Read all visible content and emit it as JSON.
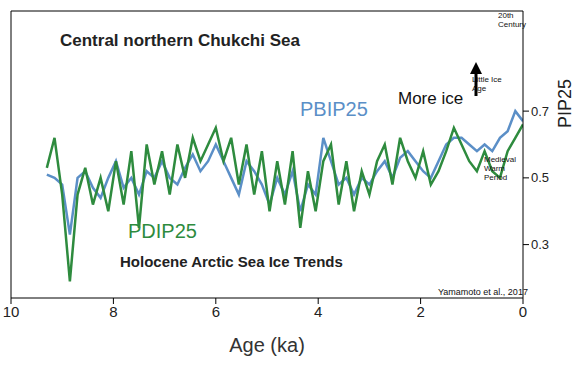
{
  "chart_data": {
    "type": "line",
    "title": "Central northern Chukchi Sea",
    "subtitle": "Holocene Arctic Sea Ice Trends",
    "x_label": "Age (ka)",
    "y_label": "PIP25",
    "x": [
      9.3,
      9.15,
      9.0,
      8.85,
      8.7,
      8.55,
      8.4,
      8.25,
      8.1,
      7.95,
      7.8,
      7.65,
      7.5,
      7.35,
      7.2,
      7.05,
      6.9,
      6.75,
      6.6,
      6.45,
      6.3,
      6.15,
      6.0,
      5.85,
      5.7,
      5.55,
      5.4,
      5.25,
      5.1,
      4.95,
      4.8,
      4.65,
      4.5,
      4.35,
      4.2,
      4.05,
      3.9,
      3.75,
      3.6,
      3.45,
      3.3,
      3.15,
      3.0,
      2.85,
      2.7,
      2.55,
      2.4,
      2.25,
      2.1,
      1.95,
      1.8,
      1.65,
      1.5,
      1.35,
      1.2,
      1.05,
      0.9,
      0.75,
      0.6,
      0.45,
      0.3,
      0.15,
      0.0
    ],
    "series": [
      {
        "name": "PBIP25",
        "color": "#5b8fc7",
        "values": [
          0.51,
          0.5,
          0.48,
          0.33,
          0.5,
          0.52,
          0.47,
          0.44,
          0.5,
          0.55,
          0.47,
          0.5,
          0.45,
          0.52,
          0.5,
          0.55,
          0.5,
          0.48,
          0.53,
          0.57,
          0.52,
          0.55,
          0.6,
          0.55,
          0.5,
          0.45,
          0.55,
          0.52,
          0.48,
          0.42,
          0.5,
          0.45,
          0.52,
          0.4,
          0.48,
          0.45,
          0.62,
          0.55,
          0.48,
          0.5,
          0.45,
          0.5,
          0.48,
          0.52,
          0.55,
          0.5,
          0.56,
          0.58,
          0.55,
          0.52,
          0.5,
          0.55,
          0.6,
          0.62,
          0.62,
          0.6,
          0.58,
          0.6,
          0.58,
          0.62,
          0.64,
          0.7,
          0.67
        ]
      },
      {
        "name": "PDIP25",
        "color": "#2e8b3e",
        "values": [
          0.53,
          0.62,
          0.45,
          0.19,
          0.45,
          0.53,
          0.42,
          0.5,
          0.4,
          0.55,
          0.42,
          0.58,
          0.35,
          0.6,
          0.48,
          0.58,
          0.45,
          0.6,
          0.5,
          0.62,
          0.55,
          0.6,
          0.65,
          0.55,
          0.62,
          0.48,
          0.6,
          0.45,
          0.58,
          0.4,
          0.55,
          0.42,
          0.58,
          0.35,
          0.52,
          0.4,
          0.55,
          0.6,
          0.42,
          0.55,
          0.4,
          0.52,
          0.45,
          0.55,
          0.6,
          0.48,
          0.62,
          0.55,
          0.5,
          0.58,
          0.48,
          0.52,
          0.58,
          0.65,
          0.6,
          0.55,
          0.52,
          0.58,
          0.52,
          0.5,
          0.58,
          0.62,
          0.66
        ]
      }
    ],
    "xlim": [
      10,
      0
    ],
    "xticks": [
      10,
      8,
      6,
      4,
      2,
      0
    ],
    "ylim": [
      0.14,
      1.0
    ],
    "yticks": [
      0.3,
      0.5,
      0.7
    ],
    "grid": false,
    "annotations": [
      "More ice",
      "20th Century",
      "Little Ice Age",
      "Medieval Warm Period",
      "Yamamoto et al., 2017"
    ]
  }
}
